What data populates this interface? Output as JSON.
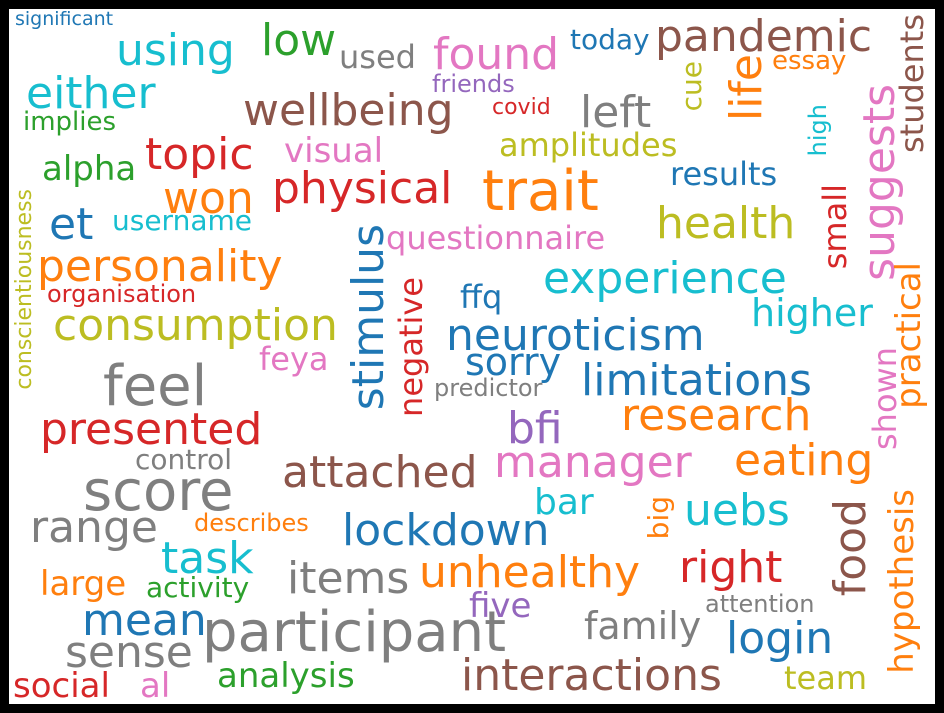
{
  "palette": {
    "blue": "#1f77b4",
    "orange": "#ff7f0e",
    "green": "#2ca02c",
    "red": "#d62728",
    "purple": "#9467bd",
    "brown": "#8c564b",
    "pink": "#e377c2",
    "gray": "#7f7f7f",
    "olive": "#bcbd22",
    "cyan": "#17becf"
  },
  "words": [
    {
      "text": "significant",
      "color": "blue"
    },
    {
      "text": "using",
      "color": "cyan"
    },
    {
      "text": "low",
      "color": "green"
    },
    {
      "text": "used",
      "color": "gray"
    },
    {
      "text": "found",
      "color": "pink"
    },
    {
      "text": "today",
      "color": "blue"
    },
    {
      "text": "pandemic",
      "color": "brown"
    },
    {
      "text": "essay",
      "color": "orange"
    },
    {
      "text": "either",
      "color": "cyan"
    },
    {
      "text": "friends",
      "color": "purple"
    },
    {
      "text": "life",
      "color": "orange"
    },
    {
      "text": "cue",
      "color": "olive"
    },
    {
      "text": "wellbeing",
      "color": "brown"
    },
    {
      "text": "left",
      "color": "gray"
    },
    {
      "text": "covid",
      "color": "red"
    },
    {
      "text": "implies",
      "color": "green"
    },
    {
      "text": "topic",
      "color": "red"
    },
    {
      "text": "visual",
      "color": "pink"
    },
    {
      "text": "amplitudes",
      "color": "olive"
    },
    {
      "text": "high",
      "color": "cyan"
    },
    {
      "text": "suggests",
      "color": "pink"
    },
    {
      "text": "students",
      "color": "brown"
    },
    {
      "text": "alpha",
      "color": "green"
    },
    {
      "text": "results",
      "color": "blue"
    },
    {
      "text": "trait",
      "color": "orange"
    },
    {
      "text": "won",
      "color": "orange"
    },
    {
      "text": "physical",
      "color": "red"
    },
    {
      "text": "et",
      "color": "blue"
    },
    {
      "text": "username",
      "color": "cyan"
    },
    {
      "text": "health",
      "color": "olive"
    },
    {
      "text": "small",
      "color": "red"
    },
    {
      "text": "conscientiousness",
      "color": "olive"
    },
    {
      "text": "questionnaire",
      "color": "pink"
    },
    {
      "text": "stimulus",
      "color": "blue"
    },
    {
      "text": "personality",
      "color": "orange"
    },
    {
      "text": "experience",
      "color": "cyan"
    },
    {
      "text": "practical",
      "color": "orange"
    },
    {
      "text": "organisation",
      "color": "red"
    },
    {
      "text": "ffq",
      "color": "blue"
    },
    {
      "text": "negative",
      "color": "red"
    },
    {
      "text": "higher",
      "color": "cyan"
    },
    {
      "text": "consumption",
      "color": "olive"
    },
    {
      "text": "neuroticism",
      "color": "blue"
    },
    {
      "text": "shown",
      "color": "pink"
    },
    {
      "text": "feya",
      "color": "pink"
    },
    {
      "text": "sorry",
      "color": "blue"
    },
    {
      "text": "feel",
      "color": "gray"
    },
    {
      "text": "limitations",
      "color": "blue"
    },
    {
      "text": "predictor",
      "color": "gray"
    },
    {
      "text": "research",
      "color": "orange"
    },
    {
      "text": "presented",
      "color": "red"
    },
    {
      "text": "bfi",
      "color": "purple"
    },
    {
      "text": "control",
      "color": "gray"
    },
    {
      "text": "manager",
      "color": "pink"
    },
    {
      "text": "eating",
      "color": "orange"
    },
    {
      "text": "attached",
      "color": "brown"
    },
    {
      "text": "score",
      "color": "gray"
    },
    {
      "text": "hypothesis",
      "color": "orange"
    },
    {
      "text": "food",
      "color": "brown"
    },
    {
      "text": "bar",
      "color": "cyan"
    },
    {
      "text": "uebs",
      "color": "cyan"
    },
    {
      "text": "big",
      "color": "orange"
    },
    {
      "text": "range",
      "color": "gray"
    },
    {
      "text": "describes",
      "color": "orange"
    },
    {
      "text": "lockdown",
      "color": "blue"
    },
    {
      "text": "task",
      "color": "cyan"
    },
    {
      "text": "right",
      "color": "red"
    },
    {
      "text": "unhealthy",
      "color": "orange"
    },
    {
      "text": "items",
      "color": "gray"
    },
    {
      "text": "large",
      "color": "orange"
    },
    {
      "text": "activity",
      "color": "green"
    },
    {
      "text": "five",
      "color": "purple"
    },
    {
      "text": "attention",
      "color": "gray"
    },
    {
      "text": "mean",
      "color": "blue"
    },
    {
      "text": "family",
      "color": "gray"
    },
    {
      "text": "login",
      "color": "blue"
    },
    {
      "text": "participant",
      "color": "gray"
    },
    {
      "text": "sense",
      "color": "gray"
    },
    {
      "text": "analysis",
      "color": "green"
    },
    {
      "text": "team",
      "color": "olive"
    },
    {
      "text": "interactions",
      "color": "brown"
    },
    {
      "text": "social",
      "color": "red"
    },
    {
      "text": "al",
      "color": "pink"
    }
  ]
}
